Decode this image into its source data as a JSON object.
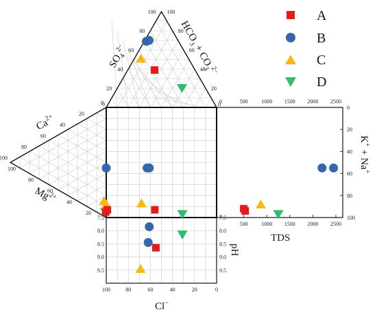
{
  "chart_data": {
    "type": "scatter",
    "subtype": "durov-diagram",
    "colors": {
      "A": "#e41a1c",
      "B": "#3366aa",
      "C": "#f5b915",
      "D": "#2ebd6e"
    },
    "series": [
      {
        "name": "A",
        "marker": "square",
        "color": "#e41a1c"
      },
      {
        "name": "B",
        "marker": "circle",
        "color": "#3366aa"
      },
      {
        "name": "C",
        "marker": "triangle-up",
        "color": "#f5b915"
      },
      {
        "name": "D",
        "marker": "triangle-down",
        "color": "#2ebd6e"
      }
    ],
    "anion_triangle": {
      "label_so4": "SO",
      "label_so4_sub": "4",
      "label_so4_sup": "2−",
      "label_hco3": "HCO",
      "label_hco3_sub": "3",
      "label_hco3_mid": " + CO",
      "label_co3_sub": "3",
      "label_co3_sup": "2−",
      "left_ticks": [
        "100",
        "80",
        "60",
        "40",
        "20"
      ],
      "right_ticks": [
        "100",
        "80",
        "60",
        "40",
        "20"
      ],
      "points": [
        {
          "series": "A",
          "so4": 39,
          "hco3": 5
        },
        {
          "series": "B",
          "so4": 69,
          "hco3": 0
        },
        {
          "series": "B",
          "so4": 70,
          "hco3": 0
        },
        {
          "series": "C",
          "so4": 51,
          "hco3": 0
        },
        {
          "series": "D",
          "so4": 20,
          "hco3": 30
        }
      ]
    },
    "cation_triangle": {
      "label_ca": "Ca",
      "label_ca_sup": "2+",
      "label_mg": "Mg",
      "label_mg_sup": "2+",
      "ca_ticks": [
        "0",
        "20",
        "40",
        "60",
        "80",
        "100"
      ],
      "mg_ticks": [
        "100",
        "80",
        "60",
        "40",
        "20"
      ],
      "points": [
        {
          "series": "C",
          "mg": 12,
          "kna": 85
        },
        {
          "series": "D",
          "mg": 5,
          "kna": 95
        },
        {
          "series": "A",
          "mg": 3,
          "kna": 95
        }
      ]
    },
    "main_square": {
      "points": [
        {
          "series": "B",
          "cl": 100,
          "kna": 55
        },
        {
          "series": "B",
          "cl": 63,
          "kna": 55
        },
        {
          "series": "B",
          "cl": 61,
          "kna": 55
        },
        {
          "series": "C",
          "cl": 100,
          "kna": 88
        },
        {
          "series": "C",
          "cl": 68,
          "kna": 87
        },
        {
          "series": "A",
          "cl": 99,
          "kna": 93
        },
        {
          "series": "A",
          "cl": 56,
          "kna": 93
        },
        {
          "series": "D",
          "cl": 31,
          "kna": 97
        }
      ]
    },
    "tds_panel": {
      "xlabel": "TDS",
      "ylabel": "K",
      "ylabel_sup1": "+",
      "ylabel_mid": " + Na",
      "ylabel_sup2": "+",
      "xlim": [
        0,
        2500
      ],
      "ylim": [
        0,
        100
      ],
      "x_ticks": [
        "0",
        "500",
        "1000",
        "1500",
        "2000",
        "2500"
      ],
      "y_ticks": [
        "0",
        "20",
        "40",
        "60",
        "80",
        "100"
      ],
      "points": [
        {
          "series": "B",
          "tds": 2200,
          "kna": 55
        },
        {
          "series": "B",
          "tds": 2450,
          "kna": 55
        },
        {
          "series": "C",
          "tds": 870,
          "kna": 88
        },
        {
          "series": "A",
          "tds": 500,
          "kna": 92
        },
        {
          "series": "A",
          "tds": 530,
          "kna": 94
        },
        {
          "series": "D",
          "tds": 1250,
          "kna": 97
        }
      ]
    },
    "ph_panel": {
      "xlabel": "Cl",
      "xlabel_sup": "−",
      "ylabel": "pH",
      "xlim": [
        100,
        0
      ],
      "ylim": [
        7.5,
        10
      ],
      "x_ticks": [
        "100",
        "80",
        "60",
        "40",
        "20",
        "0"
      ],
      "y_ticks_left": [
        "7.5",
        "8.0",
        "8.5",
        "9.0",
        "9.5"
      ],
      "y_ticks_right": [
        "7.5",
        "8.0",
        "8.5",
        "9.0",
        "9.5"
      ],
      "points": [
        {
          "series": "B",
          "cl": 61,
          "ph": 7.85
        },
        {
          "series": "B",
          "cl": 62,
          "ph": 8.45
        },
        {
          "series": "A",
          "cl": 55,
          "ph": 8.65
        },
        {
          "series": "D",
          "cl": 31,
          "ph": 8.15
        },
        {
          "series": "C",
          "cl": 69,
          "ph": 9.45
        }
      ]
    },
    "legend": {
      "placement": "top-right",
      "entries": [
        "A",
        "B",
        "C",
        "D"
      ]
    }
  }
}
